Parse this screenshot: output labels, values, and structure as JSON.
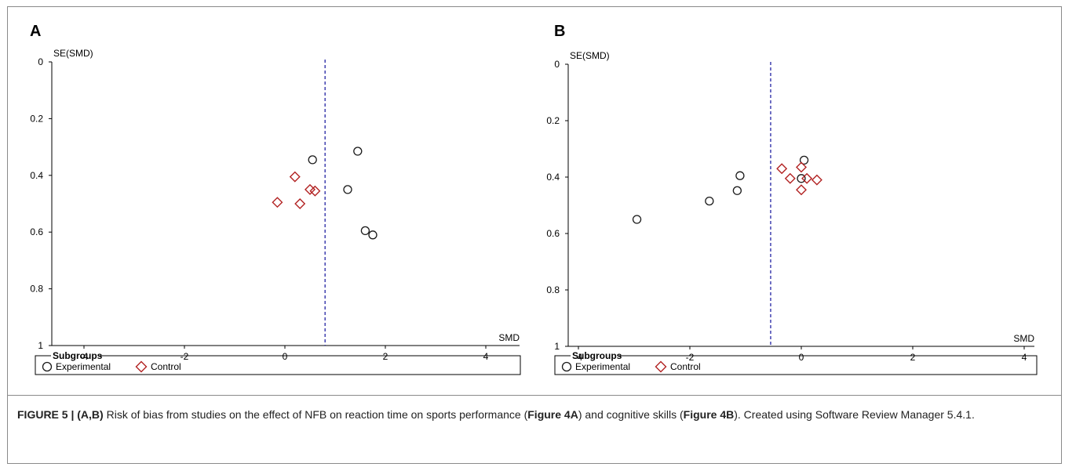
{
  "colors": {
    "experimental": "#1a1a1a",
    "control": "#b22222",
    "reference_line": "#3333aa",
    "axis": "#000000"
  },
  "legend": {
    "title": "Subgroups",
    "items": [
      {
        "label": "Experimental",
        "marker": "circle-icon"
      },
      {
        "label": "Control",
        "marker": "diamond-icon"
      }
    ]
  },
  "caption": {
    "figure_label": "FIGURE 5 |",
    "panels_bold": "(A,B)",
    "text_part1": " Risk of bias from studies on the effect of NFB on reaction time on sports performance (",
    "ref_a": "Figure 4A",
    "text_part2": ") and cognitive skills (",
    "ref_b": "Figure 4B",
    "text_part3": "). Created using Software Review Manager 5.4.1."
  },
  "chart_data": [
    {
      "type": "scatter",
      "panel_label": "A",
      "title": "",
      "xlabel": "SMD",
      "ylabel": "SE(SMD)",
      "xlim": [
        -4.6,
        4.6
      ],
      "ylim": [
        0,
        1
      ],
      "y_reversed": true,
      "x_ticks": [
        -4,
        -2,
        0,
        2,
        4
      ],
      "y_ticks": [
        0,
        0.2,
        0.4,
        0.6,
        0.8,
        1
      ],
      "y_tick_labels": [
        "0",
        "0.2",
        "0.4",
        "0.6",
        "0.8",
        "1"
      ],
      "reference_line_x": 0.8,
      "grid": false,
      "legend_position": "bottom",
      "series": [
        {
          "name": "Experimental",
          "marker": "circle",
          "points": [
            [
              1.45,
              0.315
            ],
            [
              0.55,
              0.345
            ],
            [
              1.25,
              0.45
            ],
            [
              1.6,
              0.595
            ],
            [
              1.75,
              0.61
            ]
          ]
        },
        {
          "name": "Control",
          "marker": "diamond",
          "points": [
            [
              0.2,
              0.405
            ],
            [
              0.5,
              0.45
            ],
            [
              0.6,
              0.455
            ],
            [
              -0.15,
              0.495
            ],
            [
              0.3,
              0.5
            ]
          ]
        }
      ]
    },
    {
      "type": "scatter",
      "panel_label": "B",
      "title": "",
      "xlabel": "SMD",
      "ylabel": "SE(SMD)",
      "xlim": [
        -4.3,
        4.3
      ],
      "ylim": [
        0,
        1
      ],
      "y_reversed": true,
      "x_ticks": [
        -4,
        -2,
        0,
        2,
        4
      ],
      "y_ticks": [
        0,
        0.2,
        0.4,
        0.6,
        0.8,
        1
      ],
      "y_tick_labels": [
        "0",
        "0.2",
        "0.4",
        "0.6",
        "0.8",
        "1"
      ],
      "reference_line_x": -0.55,
      "grid": false,
      "legend_position": "bottom",
      "series": [
        {
          "name": "Experimental",
          "marker": "circle",
          "points": [
            [
              0.05,
              0.34
            ],
            [
              -1.1,
              0.395
            ],
            [
              0.0,
              0.405
            ],
            [
              -1.15,
              0.448
            ],
            [
              -1.65,
              0.485
            ],
            [
              -2.95,
              0.55
            ]
          ]
        },
        {
          "name": "Control",
          "marker": "diamond",
          "points": [
            [
              -0.35,
              0.37
            ],
            [
              0.0,
              0.365
            ],
            [
              -0.2,
              0.405
            ],
            [
              0.1,
              0.405
            ],
            [
              0.28,
              0.41
            ],
            [
              0.0,
              0.445
            ]
          ]
        }
      ]
    }
  ]
}
